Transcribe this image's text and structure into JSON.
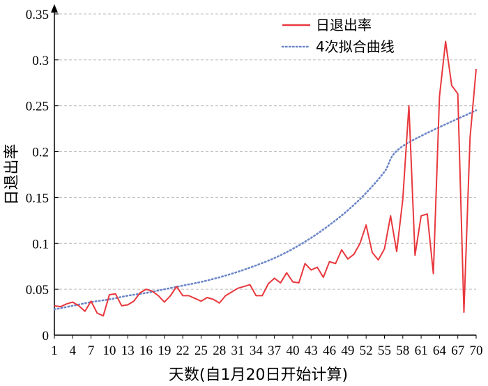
{
  "chart_data": {
    "type": "line",
    "xlabel": "天数(自1月20日开始计算)",
    "ylabel": "日退出率",
    "x_tick_labels": [
      "1",
      "4",
      "7",
      "10",
      "13",
      "16",
      "19",
      "22",
      "25",
      "28",
      "31",
      "34",
      "37",
      "40",
      "43",
      "46",
      "49",
      "52",
      "55",
      "58",
      "61",
      "64",
      "67",
      "70"
    ],
    "y_ticks": [
      0,
      0.05,
      0.1,
      0.15,
      0.2,
      0.25,
      0.3,
      0.35
    ],
    "y_tick_labels": [
      "0",
      "0.05",
      "0.1",
      "0.15",
      "0.2",
      "0.25",
      "0.3",
      "0.35"
    ],
    "xlim": [
      1,
      70
    ],
    "ylim": [
      0,
      0.35
    ],
    "grid": "horizontal dashed",
    "legend_position": "top-right",
    "colors": {
      "observed": "#e8383d",
      "fit": "#6b86c9",
      "grid": "#bbbbbb",
      "axis": "#000000"
    },
    "legend": [
      {
        "label": "日退出率",
        "style": "solid"
      },
      {
        "label": "4次拟合曲线",
        "style": "dotted"
      }
    ],
    "series": [
      {
        "name": "日退出率",
        "style": "solid",
        "values": [
          0.032,
          0.031,
          0.034,
          0.036,
          0.032,
          0.026,
          0.037,
          0.024,
          0.021,
          0.044,
          0.045,
          0.032,
          0.033,
          0.037,
          0.046,
          0.05,
          0.048,
          0.043,
          0.036,
          0.043,
          0.053,
          0.043,
          0.043,
          0.04,
          0.037,
          0.041,
          0.039,
          0.035,
          0.043,
          0.047,
          0.051,
          0.053,
          0.055,
          0.043,
          0.043,
          0.056,
          0.062,
          0.057,
          0.068,
          0.058,
          0.057,
          0.078,
          0.071,
          0.074,
          0.063,
          0.08,
          0.078,
          0.093,
          0.083,
          0.088,
          0.1,
          0.12,
          0.09,
          0.082,
          0.094,
          0.13,
          0.091,
          0.148,
          0.25,
          0.087,
          0.13,
          0.132,
          0.067,
          0.26,
          0.32,
          0.272,
          0.263,
          0.025,
          0.215,
          0.29
        ]
      },
      {
        "name": "4次拟合曲线",
        "style": "dotted",
        "values": [
          0.028,
          0.032,
          0.036,
          0.039,
          0.043,
          0.046,
          0.05,
          0.054,
          0.058,
          0.063,
          0.069,
          0.076,
          0.084,
          0.094,
          0.106,
          0.12,
          0.136,
          0.155,
          0.178,
          0.206,
          0.245
        ]
      }
    ],
    "fit_x": [
      1,
      4,
      7,
      10,
      13,
      16,
      19,
      22,
      25,
      28,
      31,
      34,
      37,
      40,
      43,
      46,
      49,
      52,
      55,
      58,
      70
    ]
  }
}
